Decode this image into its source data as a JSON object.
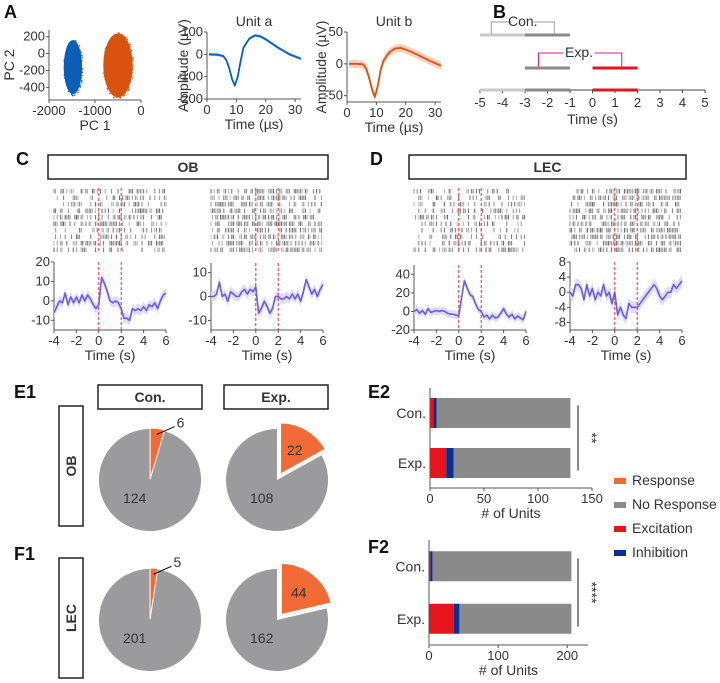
{
  "panels": {
    "A": "A",
    "B": "B",
    "C": "C",
    "D": "D",
    "E1": "E1",
    "E2": "E2",
    "F1": "F1",
    "F2": "F2"
  },
  "colors": {
    "unit_a": "#0b5fb8",
    "unit_b": "#d9530e",
    "unit_b_band": "#f7c4ad",
    "psth_line": "#6b5ce0",
    "psth_band": "#d9d6f7",
    "stim_line": "#e0303a",
    "response": "#f26a35",
    "no_response": "#8a8a8a",
    "pie_gray": "#9b9b9e",
    "excitation": "#e8141c",
    "inhibition": "#0a2f8f",
    "con_gray": "#9a9a9a",
    "exp_magenta": "#e0199b"
  },
  "chart_data": [
    {
      "id": "A-pca",
      "type": "scatter",
      "title": "",
      "xlabel": "PC 1",
      "ylabel": "PC 2",
      "xlim": [
        -2000,
        0
      ],
      "ylim": [
        -550,
        280
      ],
      "xticks": [
        "-2000",
        "-1000",
        "0"
      ],
      "yticks": [
        "200",
        "0",
        "-200",
        "-400"
      ],
      "clusters": [
        {
          "name": "Unit a",
          "center": [
            -1480,
            -160
          ],
          "spread": [
            200,
            320
          ],
          "color": "#0b5fb8"
        },
        {
          "name": "Unit b",
          "center": [
            -500,
            -140
          ],
          "spread": [
            320,
            380
          ],
          "color": "#d9530e"
        }
      ]
    },
    {
      "id": "A-unit-a",
      "type": "line",
      "title": "Unit a",
      "xlabel": "Time (µs)",
      "ylabel": "Amplitude (µV)",
      "xlim": [
        0,
        32
      ],
      "ylim": [
        -200,
        100
      ],
      "xticks": [
        "0",
        "10",
        "20",
        "30"
      ],
      "yticks": [
        "100",
        "0",
        "-100",
        "-200"
      ],
      "x": [
        0,
        3,
        5,
        6,
        7,
        8,
        9,
        10,
        11,
        12,
        14,
        16,
        18,
        20,
        24,
        28,
        32
      ],
      "values": [
        0,
        -2,
        -8,
        -25,
        -60,
        -110,
        -140,
        -100,
        -30,
        30,
        70,
        85,
        80,
        65,
        30,
        0,
        -20
      ]
    },
    {
      "id": "A-unit-b",
      "type": "line",
      "title": "Unit b",
      "xlabel": "Time (µs)",
      "ylabel": "Amplitude (µV)",
      "xlim": [
        0,
        32
      ],
      "ylim": [
        -60,
        50
      ],
      "xticks": [
        "0",
        "10",
        "20",
        "30"
      ],
      "yticks": [
        "50",
        "0",
        "-50"
      ],
      "x": [
        0,
        3,
        5,
        6,
        7,
        8,
        9,
        10,
        11,
        12,
        14,
        16,
        18,
        20,
        24,
        28,
        32
      ],
      "values": [
        0,
        0,
        -1,
        -8,
        -22,
        -40,
        -52,
        -35,
        -10,
        5,
        18,
        24,
        25,
        22,
        14,
        5,
        -3
      ]
    },
    {
      "id": "B-timeline",
      "type": "diagram",
      "xlabel": "Time (s)",
      "xlim": [
        -5,
        5
      ],
      "xticks": [
        "-5",
        "-4",
        "-3",
        "-2",
        "-1",
        "0",
        "1",
        "2",
        "3",
        "4",
        "5"
      ],
      "con_label": "Con.",
      "exp_label": "Exp.",
      "con_windows": [
        [
          -5,
          -3
        ],
        [
          -3,
          -1
        ]
      ],
      "exp_windows": [
        [
          -3,
          -1
        ],
        [
          0,
          2
        ]
      ]
    },
    {
      "id": "C-left",
      "type": "line",
      "xlabel": "Time (s)",
      "xlim": [
        -4,
        6
      ],
      "ylim": [
        -15,
        20
      ],
      "xticks": [
        "-4",
        "-2",
        "0",
        "2",
        "4",
        "6"
      ],
      "yticks": [
        "20",
        "10",
        "0",
        "-10"
      ],
      "stim": [
        0,
        2
      ],
      "x": [
        -4,
        -3.75,
        -3.5,
        -3.25,
        -3,
        -2.75,
        -2.5,
        -2.25,
        -2,
        -1.75,
        -1.5,
        -1.25,
        -1,
        -0.75,
        -0.5,
        -0.25,
        0,
        0.25,
        0.5,
        0.75,
        1,
        1.25,
        1.5,
        1.75,
        2,
        2.25,
        2.5,
        2.75,
        3,
        3.25,
        3.5,
        3.75,
        4,
        4.25,
        4.5,
        4.75,
        5,
        5.25,
        5.5,
        5.75,
        6
      ],
      "values": [
        -6,
        -3,
        0,
        -1,
        4,
        -2,
        2,
        -1,
        2,
        -1,
        3,
        0,
        3,
        1,
        -2,
        -4,
        -2,
        12,
        9,
        5,
        0,
        -1,
        0,
        -1,
        -4,
        -9,
        -9,
        -10,
        -4,
        -5,
        -4,
        -5,
        -3,
        -5,
        -2,
        -3,
        -1,
        -4,
        0,
        3,
        4
      ]
    },
    {
      "id": "C-right",
      "type": "line",
      "xlabel": "Time (s)",
      "xlim": [
        -4,
        6
      ],
      "ylim": [
        -14,
        14
      ],
      "xticks": [
        "-4",
        "-2",
        "0",
        "2",
        "4",
        "6"
      ],
      "yticks": [
        "10",
        "0",
        "-10"
      ],
      "stim": [
        0,
        2
      ],
      "x": [
        -4,
        -3.75,
        -3.5,
        -3.25,
        -3,
        -2.75,
        -2.5,
        -2.25,
        -2,
        -1.75,
        -1.5,
        -1.25,
        -1,
        -0.75,
        -0.5,
        -0.25,
        0,
        0.25,
        0.5,
        0.75,
        1,
        1.25,
        1.5,
        1.75,
        2,
        2.25,
        2.5,
        2.75,
        3,
        3.25,
        3.5,
        3.75,
        4,
        4.25,
        4.5,
        4.75,
        5,
        5.25,
        5.5,
        5.75,
        6
      ],
      "values": [
        0,
        0,
        1,
        6,
        0,
        1,
        -2,
        2,
        1,
        0,
        0,
        2,
        3,
        1,
        3,
        2,
        4,
        -7,
        -5,
        -2,
        -4,
        -7,
        -5,
        0,
        0,
        -1,
        -1,
        0,
        -1,
        1,
        -1,
        1,
        -2,
        2,
        7,
        4,
        1,
        3,
        0,
        3,
        5
      ]
    },
    {
      "id": "D-left",
      "type": "line",
      "xlabel": "Time (s)",
      "xlim": [
        -4,
        6
      ],
      "ylim": [
        -20,
        50
      ],
      "xticks": [
        "-4",
        "-2",
        "0",
        "2",
        "4",
        "6"
      ],
      "yticks": [
        "40",
        "20",
        "0",
        "-20"
      ],
      "stim": [
        0,
        2
      ],
      "x": [
        -4,
        -3.75,
        -3.5,
        -3.25,
        -3,
        -2.75,
        -2.5,
        -2.25,
        -2,
        -1.75,
        -1.5,
        -1.25,
        -1,
        -0.75,
        -0.5,
        -0.25,
        0,
        0.25,
        0.5,
        0.75,
        1,
        1.25,
        1.5,
        1.75,
        2,
        2.25,
        2.5,
        2.75,
        3,
        3.25,
        3.5,
        3.75,
        4,
        4.25,
        4.5,
        4.75,
        5,
        5.25,
        5.5,
        5.75,
        6
      ],
      "values": [
        0,
        2,
        -2,
        1,
        -3,
        3,
        -1,
        0,
        1,
        0,
        1,
        0,
        -2,
        -3,
        -3,
        -4,
        -5,
        15,
        33,
        25,
        18,
        16,
        8,
        2,
        0,
        -6,
        -4,
        -8,
        -4,
        -7,
        -6,
        -2,
        3,
        -3,
        -6,
        -3,
        -8,
        -5,
        -7,
        -9,
        0
      ]
    },
    {
      "id": "D-right",
      "type": "line",
      "xlabel": "Time (s)",
      "xlim": [
        -4,
        6
      ],
      "ylim": [
        -10,
        8
      ],
      "xticks": [
        "-4",
        "-2",
        "0",
        "2",
        "4",
        "6"
      ],
      "yticks": [
        "8",
        "4",
        "0",
        "-4",
        "-8"
      ],
      "stim": [
        0,
        2
      ],
      "x": [
        -4,
        -3.75,
        -3.5,
        -3.25,
        -3,
        -2.75,
        -2.5,
        -2.25,
        -2,
        -1.75,
        -1.5,
        -1.25,
        -1,
        -0.75,
        -0.5,
        -0.25,
        0,
        0.25,
        0.5,
        0.75,
        1,
        1.25,
        1.5,
        1.75,
        2,
        2.25,
        2.5,
        2.75,
        3,
        3.25,
        3.5,
        3.75,
        4,
        4.25,
        4.5,
        4.75,
        5,
        5.25,
        5.5,
        5.75,
        6
      ],
      "values": [
        0,
        -1,
        2,
        2,
        1,
        -2,
        2,
        -1,
        1,
        -2,
        0,
        -1,
        2,
        -1,
        0,
        -3,
        0,
        -6,
        -4,
        -6,
        -7,
        -3,
        -4,
        -4,
        -4,
        -3,
        -2,
        -1,
        0,
        1,
        2,
        1,
        -1,
        -2,
        -1,
        0,
        0,
        2,
        1,
        2,
        3
      ]
    },
    {
      "id": "E1-con",
      "type": "pie",
      "row": "OB",
      "header": "Con.",
      "slices": [
        {
          "label": "Response",
          "value": 6
        },
        {
          "label": "No Response",
          "value": 124
        }
      ]
    },
    {
      "id": "E1-exp",
      "type": "pie",
      "row": "OB",
      "header": "Exp.",
      "slices": [
        {
          "label": "Response",
          "value": 22
        },
        {
          "label": "No Response",
          "value": 108
        }
      ]
    },
    {
      "id": "F1-con",
      "type": "pie",
      "row": "LEC",
      "header": "Con.",
      "slices": [
        {
          "label": "Response",
          "value": 5
        },
        {
          "label": "No Response",
          "value": 201
        }
      ]
    },
    {
      "id": "F1-exp",
      "type": "pie",
      "row": "LEC",
      "header": "Exp.",
      "slices": [
        {
          "label": "Response",
          "value": 44
        },
        {
          "label": "No Response",
          "value": 162
        }
      ]
    },
    {
      "id": "E2",
      "type": "bar",
      "orientation": "horizontal",
      "stacked": true,
      "xlabel": "# of Units",
      "xlim": [
        0,
        150
      ],
      "xticks": [
        "0",
        "50",
        "100",
        "150"
      ],
      "categories": [
        "Con.",
        "Exp."
      ],
      "series": [
        {
          "name": "Excitation",
          "values": [
            3,
            15
          ]
        },
        {
          "name": "Inhibition",
          "values": [
            3,
            7
          ]
        },
        {
          "name": "No Response",
          "values": [
            124,
            108
          ]
        }
      ],
      "significance": "**"
    },
    {
      "id": "F2",
      "type": "bar",
      "orientation": "horizontal",
      "stacked": true,
      "xlabel": "# of Units",
      "xlim": [
        0,
        230
      ],
      "xticks": [
        "0",
        "100",
        "200"
      ],
      "categories": [
        "Con.",
        "Exp."
      ],
      "series": [
        {
          "name": "Excitation",
          "values": [
            2,
            36
          ]
        },
        {
          "name": "Inhibition",
          "values": [
            3,
            8
          ]
        },
        {
          "name": "No Response",
          "values": [
            201,
            162
          ]
        }
      ],
      "significance": "****"
    }
  ],
  "headers": {
    "C": "OB",
    "D": "LEC",
    "con": "Con.",
    "exp": "Exp.",
    "row_E": "OB",
    "row_F": "LEC"
  },
  "legend": [
    "Response",
    "No Response",
    "Excitation",
    "Inhibition"
  ]
}
